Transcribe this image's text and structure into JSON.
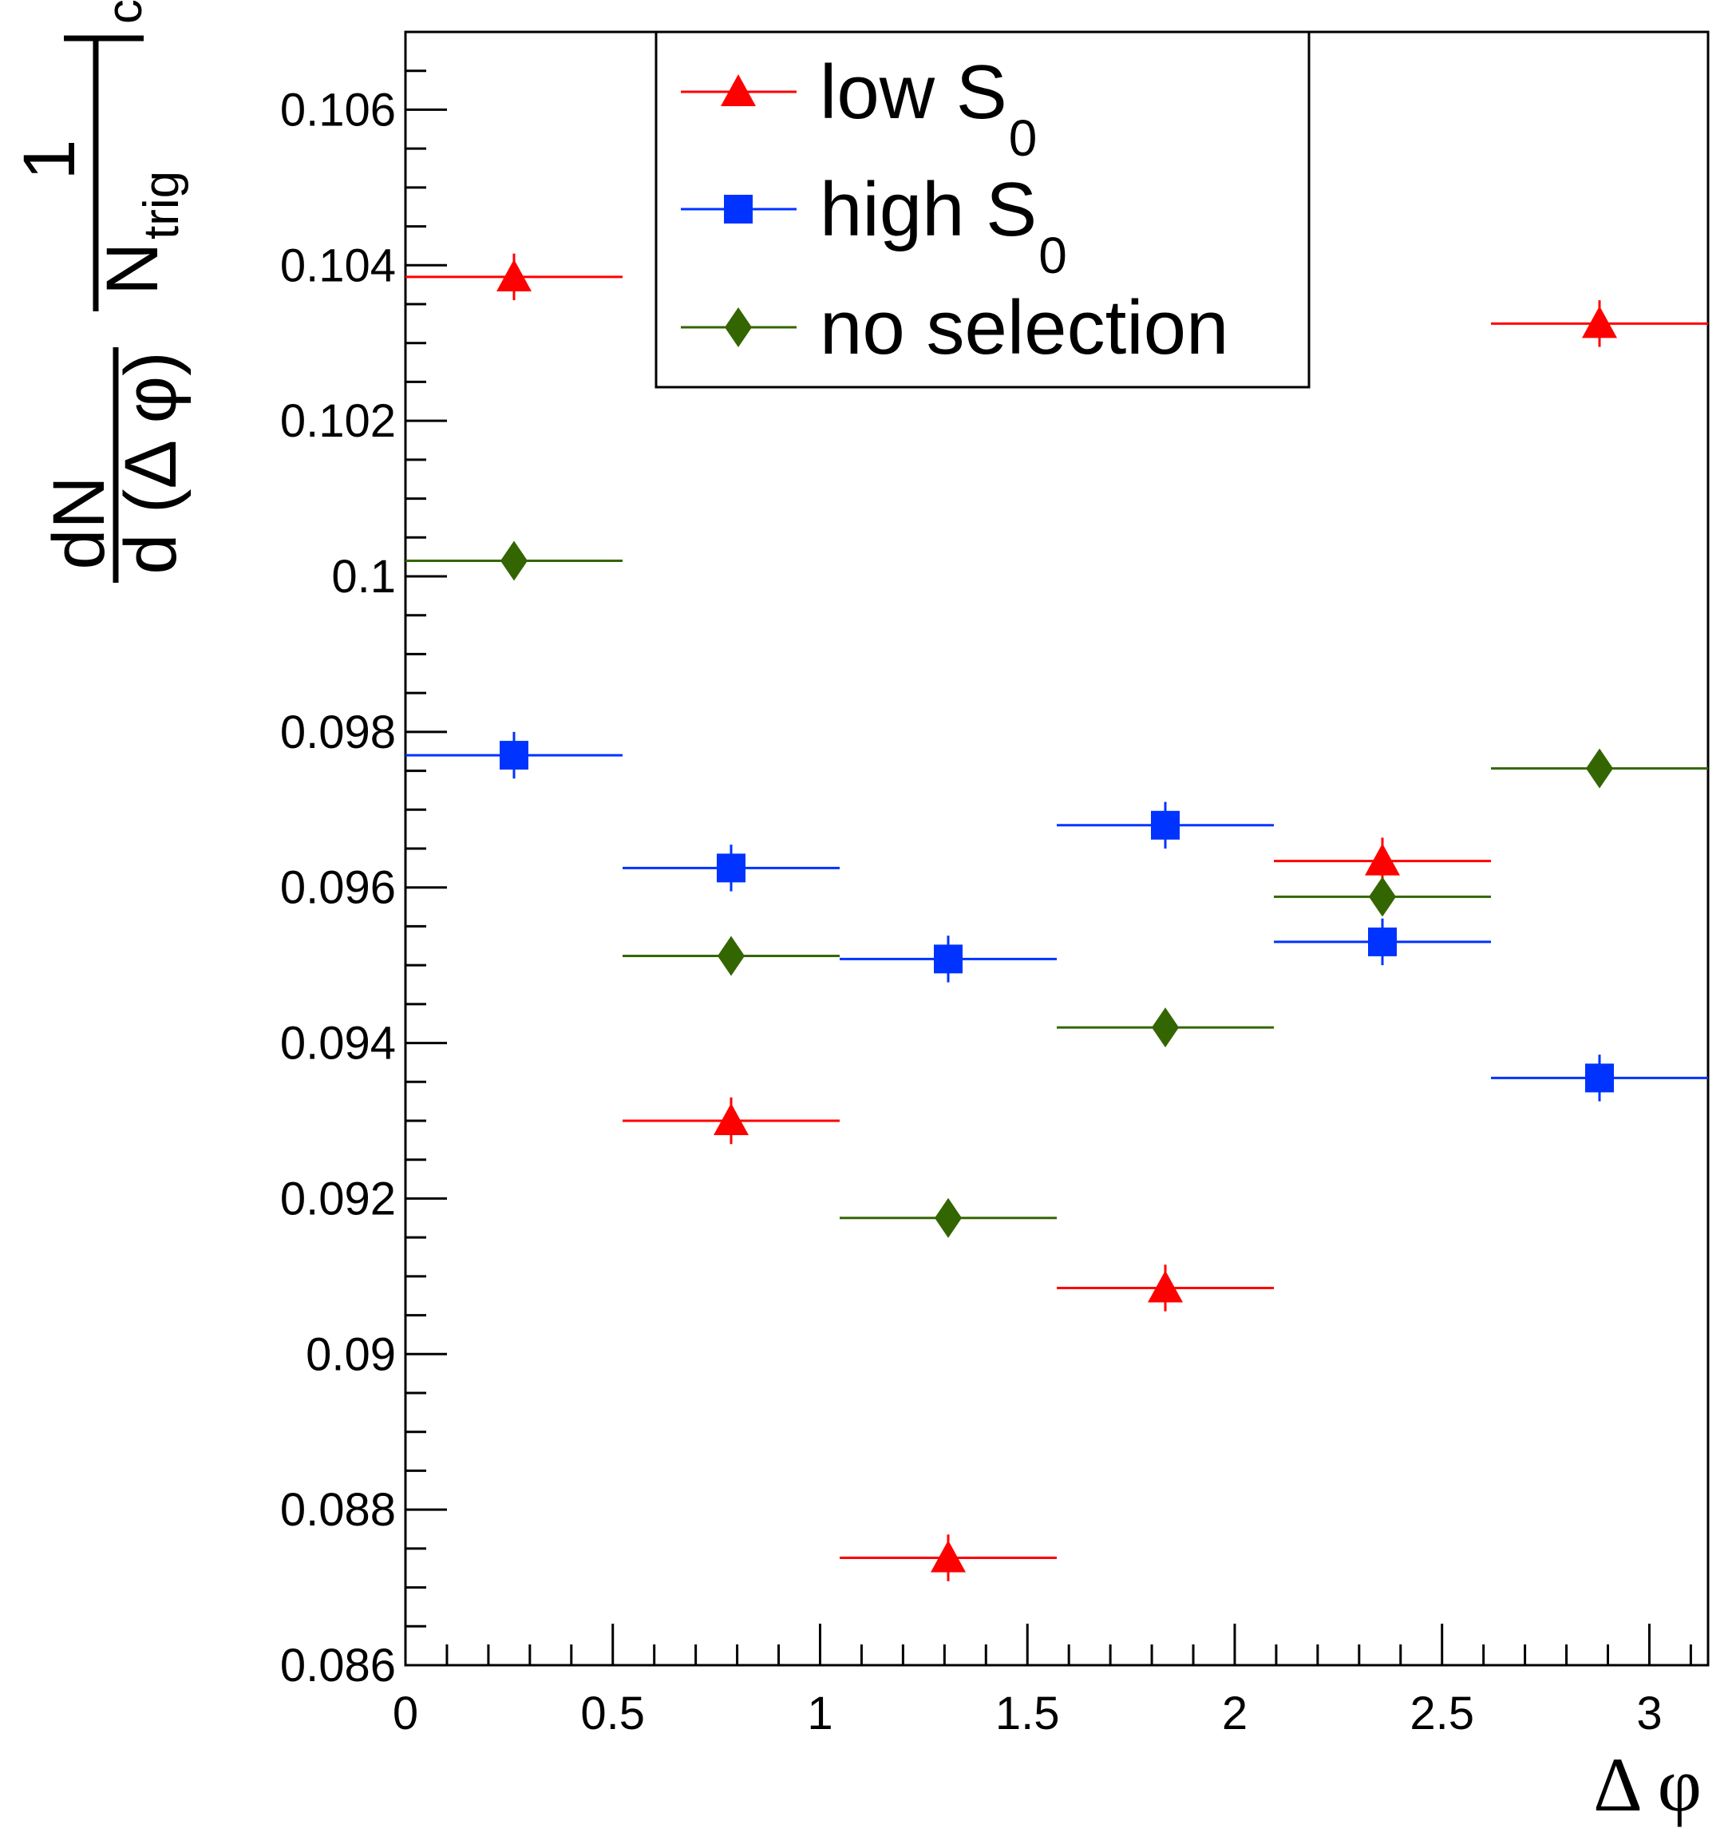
{
  "chart_data": {
    "type": "scatter",
    "title": "",
    "xlabel": "Δ φ",
    "ylabel": {
      "numerator": "dN",
      "denominator": "d (Δ φ)",
      "prefactor_num": "1",
      "prefactor_den": "N",
      "prefactor_den_sub": "trig",
      "suffix_sub": "class"
    },
    "xlim": [
      0,
      3.14159
    ],
    "ylim": [
      0.086,
      0.107
    ],
    "x_ticks": [
      0,
      0.5,
      1,
      1.5,
      2,
      2.5,
      3
    ],
    "x_tick_labels": [
      "0",
      "0.5",
      "1",
      "1.5",
      "2",
      "2.5",
      "3"
    ],
    "y_ticks": [
      0.086,
      0.088,
      0.09,
      0.092,
      0.094,
      0.096,
      0.098,
      0.1,
      0.102,
      0.104,
      0.106
    ],
    "y_tick_labels": [
      "0.086",
      "0.088",
      "0.09",
      "0.092",
      "0.094",
      "0.096",
      "0.098",
      "0.1",
      "0.102",
      "0.104",
      "0.106"
    ],
    "bin_edges": [
      0,
      0.5236,
      1.0472,
      1.5708,
      2.0944,
      2.618,
      3.1416
    ],
    "x": [
      0.2618,
      0.7854,
      1.309,
      1.8326,
      2.3562,
      2.8798
    ],
    "legend_position": "top-center",
    "series": [
      {
        "name": "low S",
        "name_sub": "0",
        "marker": "triangle",
        "color": "#ff0000",
        "values": [
          0.10385,
          0.093,
          0.08738,
          0.09085,
          0.09634,
          0.10325
        ],
        "errors": [
          0.0003,
          0.0003,
          0.0003,
          0.0003,
          0.0003,
          0.0003
        ]
      },
      {
        "name": "high S",
        "name_sub": "0",
        "marker": "square",
        "color": "#0033ff",
        "values": [
          0.0977,
          0.09625,
          0.09508,
          0.0968,
          0.0953,
          0.09355
        ],
        "errors": [
          0.0003,
          0.0003,
          0.0003,
          0.0003,
          0.0003,
          0.0003
        ]
      },
      {
        "name": "no selection",
        "name_sub": "",
        "marker": "diamond",
        "color": "#336600",
        "values": [
          0.1002,
          0.09512,
          0.09175,
          0.0942,
          0.09588,
          0.09753
        ],
        "errors": [
          0.0001,
          0.0001,
          0.0001,
          0.0001,
          0.0001,
          0.0001
        ]
      }
    ]
  }
}
